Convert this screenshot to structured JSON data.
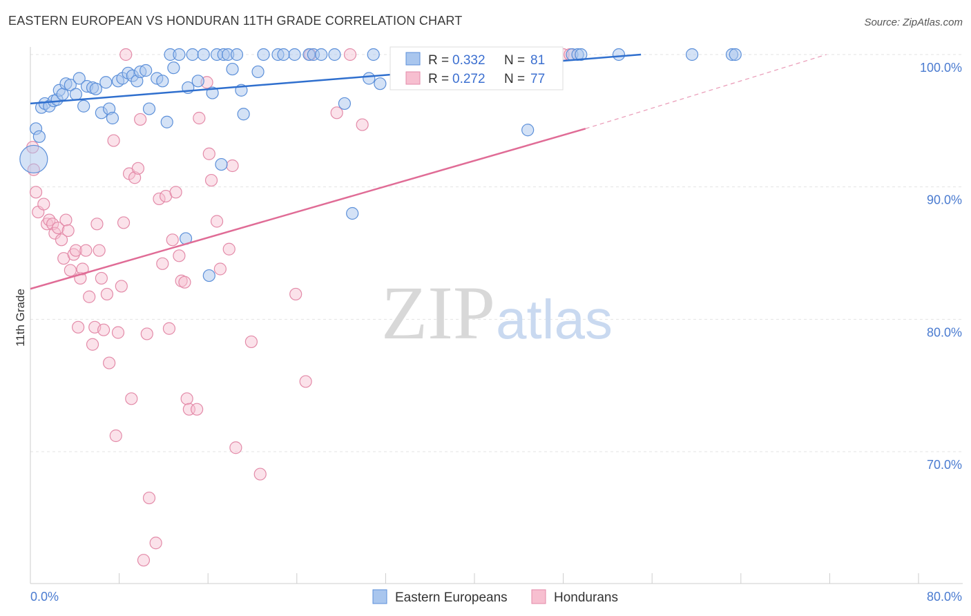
{
  "title": "EASTERN EUROPEAN VS HONDURAN 11TH GRADE CORRELATION CHART",
  "source": "Source: ZipAtlas.com",
  "watermark": {
    "zip": "ZIP",
    "atlas": "atlas"
  },
  "colors": {
    "blue_fill": "#a9c6ee",
    "blue_stroke": "#5b8fd9",
    "blue_line": "#2f6fce",
    "pink_fill": "#f7bfd0",
    "pink_stroke": "#e38aa8",
    "pink_line": "#e06c96",
    "grid": "#e3e3e3",
    "tick_text": "#4a7bd0"
  },
  "legend": {
    "rows": [
      {
        "r_label": "R = ",
        "r_value": "0.332",
        "n_label": "N = ",
        "n_value": "81",
        "series": "blue"
      },
      {
        "r_label": "R = ",
        "r_value": "0.272",
        "n_label": "N = ",
        "n_value": "77",
        "series": "pink"
      }
    ]
  },
  "bottom_legend": [
    "Eastern Europeans",
    "Hondurans"
  ],
  "chart_data": {
    "type": "scatter",
    "title": "EASTERN EUROPEAN VS HONDURAN 11TH GRADE CORRELATION CHART",
    "xlabel": "",
    "ylabel": "11th Grade",
    "xlim": [
      0,
      80
    ],
    "ylim": [
      60,
      102
    ],
    "x_tick_labels": [
      "0.0%",
      "80.0%"
    ],
    "y_ticks": [
      70,
      80,
      90,
      100
    ],
    "y_tick_labels": [
      "70.0%",
      "80.0%",
      "90.0%",
      "100.0%"
    ],
    "grid": true,
    "legend_position": "top-center",
    "series": [
      {
        "name": "Eastern Europeans",
        "color": "#a9c6ee",
        "r": 0.332,
        "n": 81,
        "trend": {
          "x": [
            0,
            55
          ],
          "y": [
            96.3,
            100.0
          ],
          "dashed_to": null
        },
        "points": [
          [
            0.5,
            94.4
          ],
          [
            0.8,
            93.8
          ],
          [
            1.0,
            96.0
          ],
          [
            1.3,
            96.3
          ],
          [
            1.7,
            96.1
          ],
          [
            2.1,
            96.5
          ],
          [
            2.4,
            96.6
          ],
          [
            2.6,
            97.3
          ],
          [
            2.9,
            97.0
          ],
          [
            3.2,
            97.8
          ],
          [
            3.6,
            97.7
          ],
          [
            4.1,
            97.0
          ],
          [
            4.4,
            98.2
          ],
          [
            4.8,
            96.1
          ],
          [
            5.1,
            97.6
          ],
          [
            5.6,
            97.5
          ],
          [
            5.9,
            97.4
          ],
          [
            6.4,
            95.6
          ],
          [
            6.8,
            97.9
          ],
          [
            7.1,
            95.9
          ],
          [
            7.4,
            95.2
          ],
          [
            7.9,
            98.0
          ],
          [
            8.3,
            98.2
          ],
          [
            8.8,
            98.6
          ],
          [
            9.2,
            98.4
          ],
          [
            9.6,
            98.0
          ],
          [
            9.9,
            98.7
          ],
          [
            10.4,
            98.8
          ],
          [
            10.7,
            95.9
          ],
          [
            11.4,
            98.2
          ],
          [
            11.9,
            98.0
          ],
          [
            12.3,
            94.9
          ],
          [
            12.6,
            100
          ],
          [
            12.9,
            99.0
          ],
          [
            13.4,
            100
          ],
          [
            14.0,
            86.1
          ],
          [
            14.2,
            97.5
          ],
          [
            14.6,
            100
          ],
          [
            15.1,
            98.0
          ],
          [
            15.6,
            100
          ],
          [
            16.1,
            83.3
          ],
          [
            16.4,
            97.1
          ],
          [
            16.8,
            100
          ],
          [
            17.2,
            91.7
          ],
          [
            17.4,
            100
          ],
          [
            17.8,
            100
          ],
          [
            18.2,
            98.9
          ],
          [
            18.6,
            100
          ],
          [
            19.0,
            97.3
          ],
          [
            19.2,
            95.5
          ],
          [
            20.5,
            98.7
          ],
          [
            21.0,
            100
          ],
          [
            22.3,
            100
          ],
          [
            23.8,
            100
          ],
          [
            25.1,
            100
          ],
          [
            25.5,
            100
          ],
          [
            26.2,
            100
          ],
          [
            28.3,
            96.3
          ],
          [
            29.0,
            88.0
          ],
          [
            30.5,
            98.2
          ],
          [
            30.9,
            100
          ],
          [
            31.5,
            97.8
          ],
          [
            34.0,
            100
          ],
          [
            35.2,
            100
          ],
          [
            36.8,
            100
          ],
          [
            38.6,
            100
          ],
          [
            42.3,
            100
          ],
          [
            44.8,
            94.3
          ],
          [
            45.5,
            100
          ],
          [
            48.8,
            100
          ],
          [
            49.3,
            100
          ],
          [
            49.6,
            100
          ],
          [
            59.6,
            100
          ],
          [
            63.2,
            100
          ],
          [
            63.5,
            100
          ],
          [
            53.0,
            100
          ],
          [
            40.0,
            100
          ],
          [
            44.0,
            100
          ],
          [
            27.4,
            100
          ],
          [
            22.8,
            100
          ],
          [
            0.3,
            92.1
          ]
        ]
      },
      {
        "name": "Hondurans",
        "color": "#f7bfd0",
        "r": 0.272,
        "n": 77,
        "trend": {
          "x": [
            0,
            50
          ],
          "y": [
            82.3,
            94.4
          ],
          "dashed_to": {
            "x": 71.7,
            "y": 100.0
          }
        },
        "points": [
          [
            0.2,
            93.0
          ],
          [
            0.3,
            91.3
          ],
          [
            0.5,
            89.6
          ],
          [
            0.7,
            88.1
          ],
          [
            1.2,
            88.7
          ],
          [
            1.5,
            87.2
          ],
          [
            1.7,
            87.5
          ],
          [
            2.0,
            87.2
          ],
          [
            2.2,
            86.5
          ],
          [
            2.5,
            86.9
          ],
          [
            2.8,
            86.0
          ],
          [
            3.0,
            84.6
          ],
          [
            3.2,
            87.5
          ],
          [
            3.4,
            86.7
          ],
          [
            3.6,
            83.7
          ],
          [
            3.9,
            84.9
          ],
          [
            4.1,
            85.2
          ],
          [
            4.3,
            79.4
          ],
          [
            4.5,
            83.1
          ],
          [
            4.7,
            83.8
          ],
          [
            5.0,
            85.2
          ],
          [
            5.3,
            81.7
          ],
          [
            5.6,
            78.1
          ],
          [
            5.8,
            79.4
          ],
          [
            6.0,
            87.2
          ],
          [
            6.2,
            85.2
          ],
          [
            6.4,
            83.1
          ],
          [
            6.6,
            79.2
          ],
          [
            6.9,
            81.9
          ],
          [
            7.1,
            76.7
          ],
          [
            7.5,
            93.5
          ],
          [
            7.7,
            71.2
          ],
          [
            7.9,
            79.0
          ],
          [
            8.2,
            82.5
          ],
          [
            8.4,
            87.3
          ],
          [
            8.6,
            100
          ],
          [
            8.9,
            91.0
          ],
          [
            9.1,
            74.0
          ],
          [
            9.4,
            90.7
          ],
          [
            9.7,
            91.4
          ],
          [
            9.9,
            95.1
          ],
          [
            10.2,
            61.8
          ],
          [
            10.5,
            78.9
          ],
          [
            10.7,
            66.5
          ],
          [
            11.3,
            63.1
          ],
          [
            11.6,
            89.1
          ],
          [
            11.9,
            84.2
          ],
          [
            12.2,
            89.3
          ],
          [
            12.5,
            79.3
          ],
          [
            12.8,
            86.0
          ],
          [
            13.1,
            89.6
          ],
          [
            13.4,
            84.8
          ],
          [
            13.6,
            82.9
          ],
          [
            13.9,
            82.8
          ],
          [
            14.1,
            74.0
          ],
          [
            14.3,
            73.2
          ],
          [
            15.0,
            73.2
          ],
          [
            15.2,
            95.2
          ],
          [
            15.9,
            97.9
          ],
          [
            16.1,
            92.5
          ],
          [
            16.3,
            90.5
          ],
          [
            16.8,
            87.4
          ],
          [
            17.1,
            83.8
          ],
          [
            17.9,
            85.3
          ],
          [
            18.2,
            91.6
          ],
          [
            18.5,
            70.3
          ],
          [
            19.9,
            78.3
          ],
          [
            20.7,
            68.3
          ],
          [
            23.9,
            81.9
          ],
          [
            24.8,
            75.3
          ],
          [
            25.2,
            100
          ],
          [
            27.6,
            95.6
          ],
          [
            28.8,
            100
          ],
          [
            29.9,
            94.7
          ],
          [
            40.9,
            100
          ],
          [
            48.0,
            100
          ],
          [
            48.6,
            100
          ]
        ]
      }
    ]
  }
}
